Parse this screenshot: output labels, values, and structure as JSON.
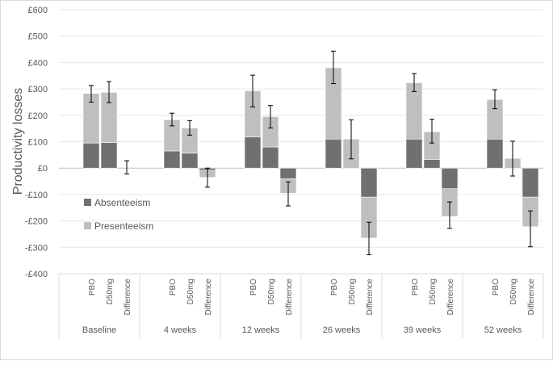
{
  "chart_data": {
    "type": "bar",
    "stacked": true,
    "ylabel": "Productivity losses",
    "ylim": [
      -400,
      600
    ],
    "yticks": [
      {
        "value": 600,
        "label": "£600"
      },
      {
        "value": 500,
        "label": "£500"
      },
      {
        "value": 400,
        "label": "£400"
      },
      {
        "value": 300,
        "label": "£300"
      },
      {
        "value": 200,
        "label": "£200"
      },
      {
        "value": 100,
        "label": "£100"
      },
      {
        "value": 0,
        "label": "£0"
      },
      {
        "value": -100,
        "label": "-£100"
      },
      {
        "value": -200,
        "label": "-£200"
      },
      {
        "value": -300,
        "label": "-£300"
      },
      {
        "value": -400,
        "label": "-£400"
      }
    ],
    "legend": [
      {
        "name": "Absenteeism",
        "color": "#707070"
      },
      {
        "name": "Presenteeism",
        "color": "#bfbfbf"
      }
    ],
    "groups": [
      {
        "label": "Baseline",
        "bars": [
          {
            "label": "PBO",
            "absenteeism": 95,
            "presenteeism": 188,
            "err_low": 250,
            "err_high": 313
          },
          {
            "label": "D50mg",
            "absenteeism": 97,
            "presenteeism": 190,
            "err_low": 248,
            "err_high": 328
          },
          {
            "label": "Difference",
            "absenteeism": 0,
            "presenteeism": 0,
            "err_low": -22,
            "err_high": 28
          }
        ]
      },
      {
        "label": "4 weeks",
        "bars": [
          {
            "label": "PBO",
            "absenteeism": 65,
            "presenteeism": 118,
            "err_low": 160,
            "err_high": 208
          },
          {
            "label": "D50mg",
            "absenteeism": 57,
            "presenteeism": 95,
            "err_low": 125,
            "err_high": 180
          },
          {
            "label": "Difference",
            "absenteeism": -8,
            "presenteeism": -27,
            "err_low": -72,
            "err_high": 0
          }
        ]
      },
      {
        "label": "12 weeks",
        "bars": [
          {
            "label": "PBO",
            "absenteeism": 118,
            "presenteeism": 175,
            "err_low": 232,
            "err_high": 352
          },
          {
            "label": "D50mg",
            "absenteeism": 80,
            "presenteeism": 115,
            "err_low": 152,
            "err_high": 237
          },
          {
            "label": "Difference",
            "absenteeism": -40,
            "presenteeism": -55,
            "err_low": -143,
            "err_high": -52
          }
        ]
      },
      {
        "label": "26 weeks",
        "bars": [
          {
            "label": "PBO",
            "absenteeism": 110,
            "presenteeism": 270,
            "err_low": 320,
            "err_high": 443
          },
          {
            "label": "D50mg",
            "absenteeism": 0,
            "presenteeism": 110,
            "err_low": 35,
            "err_high": 183
          },
          {
            "label": "Difference",
            "absenteeism": -110,
            "presenteeism": -155,
            "err_low": -328,
            "err_high": -205
          }
        ]
      },
      {
        "label": "39 weeks",
        "bars": [
          {
            "label": "PBO",
            "absenteeism": 110,
            "presenteeism": 213,
            "err_low": 290,
            "err_high": 358
          },
          {
            "label": "D50mg",
            "absenteeism": 33,
            "presenteeism": 105,
            "err_low": 95,
            "err_high": 185
          },
          {
            "label": "Difference",
            "absenteeism": -78,
            "presenteeism": -105,
            "err_low": -228,
            "err_high": -128
          }
        ]
      },
      {
        "label": "52 weeks",
        "bars": [
          {
            "label": "PBO",
            "absenteeism": 110,
            "presenteeism": 150,
            "err_low": 225,
            "err_high": 297
          },
          {
            "label": "D50mg",
            "absenteeism": 0,
            "presenteeism": 37,
            "err_low": -30,
            "err_high": 102
          },
          {
            "label": "Difference",
            "absenteeism": -110,
            "presenteeism": -112,
            "err_low": -298,
            "err_high": -162
          }
        ]
      }
    ]
  }
}
